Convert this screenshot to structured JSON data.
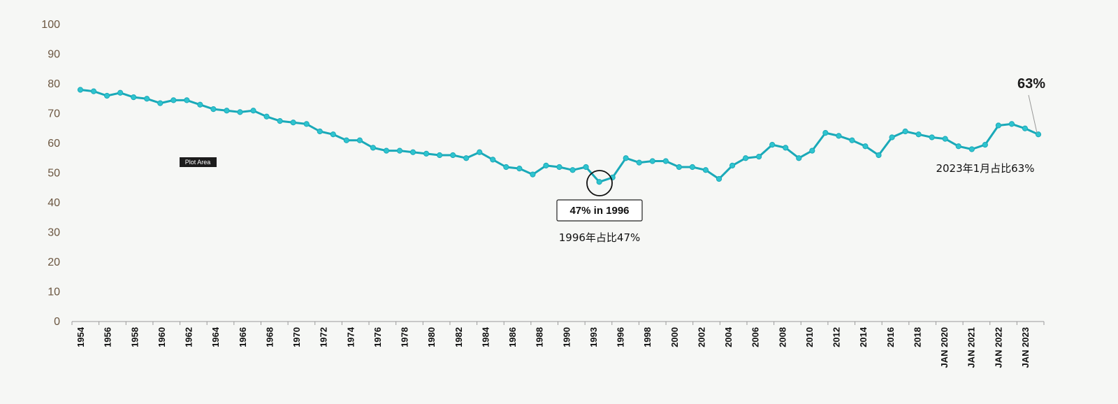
{
  "chart_data": {
    "type": "line",
    "title": "",
    "xlabel": "",
    "ylabel": "",
    "ylim": [
      0,
      100
    ],
    "yticks": [
      0,
      10,
      20,
      30,
      40,
      50,
      60,
      70,
      80,
      90,
      100
    ],
    "grid": false,
    "series": [
      {
        "color": "#1aa9b8",
        "values": [
          78,
          77.5,
          76,
          77,
          75.5,
          75,
          73.5,
          74.5,
          74.5,
          73,
          71.5,
          71,
          70.5,
          71,
          69,
          67.5,
          67,
          66.5,
          64,
          63,
          61,
          61,
          58.5,
          57.5,
          57.5,
          57,
          56.5,
          56,
          56,
          55,
          57,
          54.5,
          52,
          51.5,
          49.5,
          52.5,
          52,
          51,
          52,
          47,
          48.5,
          55,
          53.5,
          54,
          54,
          52,
          52,
          51,
          48,
          52.5,
          55,
          55.5,
          59.5,
          58.5,
          55,
          57.5,
          63.5,
          62.5,
          61,
          59,
          56,
          62,
          64,
          63,
          62,
          61.5,
          59,
          58,
          59.5,
          66,
          66.5,
          65,
          63
        ]
      }
    ],
    "x_tick_labels": [
      "1954",
      "1956",
      "1958",
      "1960",
      "1962",
      "1964",
      "1966",
      "1968",
      "1970",
      "1972",
      "1974",
      "1976",
      "1978",
      "1980",
      "1982",
      "1984",
      "1986",
      "1988",
      "1990",
      "1993",
      "1996",
      "1998",
      "2000",
      "2002",
      "2004",
      "2006",
      "2008",
      "2010",
      "2012",
      "2014",
      "2016",
      "2018",
      "JAN 2020",
      "JAN 2021",
      "JAN 2022",
      "JAN 2023"
    ],
    "annotations": {
      "box_1996": "47% in 1996",
      "note_1996": "1996年占比47%",
      "label_2023": "63%",
      "note_2023": "2023年1月占比63%"
    },
    "plot_area_label": "Plot Area",
    "colors": {
      "line": "#1aa9b8",
      "marker_fill": "#2fc4cf",
      "axis_text": "#6b5640"
    }
  }
}
